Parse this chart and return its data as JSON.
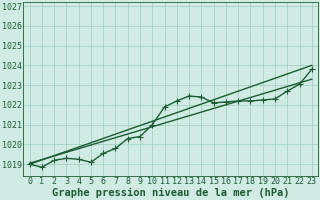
{
  "xlabel": "Graphe pression niveau de la mer (hPa)",
  "background_color": "#d0eae4",
  "grid_color": "#a0ccbe",
  "line_color": "#1a5c30",
  "x_ticks": [
    0,
    1,
    2,
    3,
    4,
    5,
    6,
    7,
    8,
    9,
    10,
    11,
    12,
    13,
    14,
    15,
    16,
    17,
    18,
    19,
    20,
    21,
    22,
    23
  ],
  "y_ticks": [
    1019,
    1020,
    1021,
    1022,
    1023,
    1024,
    1025,
    1026,
    1027
  ],
  "ylim": [
    1018.4,
    1027.2
  ],
  "xlim": [
    -0.5,
    23.5
  ],
  "main_data": [
    [
      0,
      1019.0
    ],
    [
      1,
      1018.85
    ],
    [
      2,
      1019.2
    ],
    [
      3,
      1019.3
    ],
    [
      4,
      1019.25
    ],
    [
      5,
      1019.1
    ],
    [
      6,
      1019.55
    ],
    [
      7,
      1019.8
    ],
    [
      8,
      1020.3
    ],
    [
      9,
      1020.4
    ],
    [
      10,
      1021.0
    ],
    [
      11,
      1021.9
    ],
    [
      12,
      1022.2
    ],
    [
      13,
      1022.45
    ],
    [
      14,
      1022.4
    ],
    [
      15,
      1022.1
    ],
    [
      16,
      1022.15
    ],
    [
      17,
      1022.2
    ],
    [
      18,
      1022.2
    ],
    [
      19,
      1022.25
    ],
    [
      20,
      1022.3
    ],
    [
      21,
      1022.7
    ],
    [
      22,
      1023.05
    ],
    [
      23,
      1023.8
    ]
  ],
  "line2_data": [
    [
      0,
      1019.0
    ],
    [
      23,
      1024.0
    ]
  ],
  "line3_data": [
    [
      0,
      1019.05
    ],
    [
      23,
      1023.3
    ]
  ],
  "marker": "+",
  "markersize": 4,
  "linewidth": 1.0,
  "xlabel_fontsize": 7.5,
  "tick_fontsize": 6.0
}
